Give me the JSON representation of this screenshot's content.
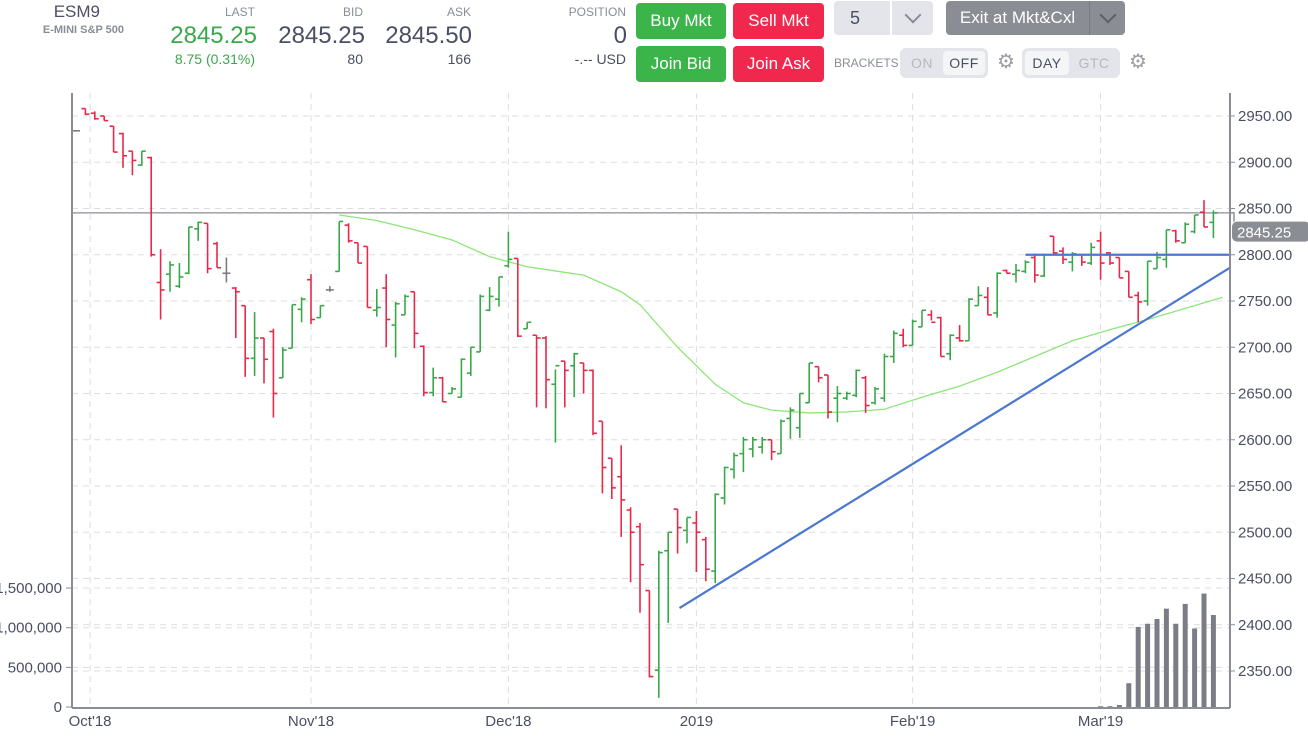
{
  "instrument": {
    "symbol": "ESM9",
    "name": "E-MINI S&P 500"
  },
  "quote": {
    "last_label": "LAST",
    "last": "2845.25",
    "change": "8.75 (0.31%)",
    "bid_label": "BID",
    "bid": "2845.25",
    "bid_size": "80",
    "ask_label": "ASK",
    "ask": "2845.50",
    "ask_size": "166",
    "position_label": "POSITION",
    "position": "0",
    "pnl": "-.-- USD"
  },
  "buttons": {
    "buy_mkt": "Buy Mkt",
    "sell_mkt": "Sell Mkt",
    "join_bid": "Join Bid",
    "join_ask": "Join Ask",
    "exit": "Exit at Mkt&Cxl"
  },
  "quantity": {
    "selected": "5"
  },
  "brackets": {
    "label": "BRACKETS",
    "on": "ON",
    "off": "OFF",
    "selected": "OFF"
  },
  "duration": {
    "day": "DAY",
    "gtc": "GTC",
    "selected": "DAY"
  },
  "icons": {
    "settings": "gear-icon",
    "dropdown": "chevron-down-icon"
  },
  "colors": {
    "up": "#3aa84a",
    "down": "#e8294a",
    "unchanged": "#7a7d85",
    "moving_average": "#8ee67a",
    "trendline": "#4a78d0",
    "last_price_tag": "#8a8d94",
    "buy": "#3bb54a",
    "sell": "#f0284e"
  },
  "chart_data": {
    "type": "ohlc",
    "price_axis": {
      "ticks": [
        "2950.00",
        "2900.00",
        "2850.00",
        "2800.00",
        "2750.00",
        "2700.00",
        "2650.00",
        "2600.00",
        "2550.00",
        "2500.00",
        "2450.00",
        "2400.00",
        "2350.00"
      ],
      "range": [
        2310,
        2965
      ]
    },
    "last_price_label": "2845.25",
    "last_price": 2845.25,
    "volume_axis": {
      "ticks": [
        "1,500,000",
        "1,000,000",
        "500,000",
        "0"
      ],
      "range": [
        0,
        1500000
      ]
    },
    "x_labels": [
      {
        "label": "Oct'18",
        "bar_index": 1.5
      },
      {
        "label": "Nov'18",
        "bar_index": 25
      },
      {
        "label": "Dec'18",
        "bar_index": 46
      },
      {
        "label": "2019",
        "bar_index": 66
      },
      {
        "label": "Feb'19",
        "bar_index": 89
      },
      {
        "label": "Mar'19",
        "bar_index": 109
      }
    ],
    "bars_ohlc": [
      [
        2934,
        2934,
        2934,
        2934
      ],
      [
        2958,
        2958,
        2951,
        2952
      ],
      [
        2953,
        2955,
        2946,
        2947
      ],
      [
        2950,
        2950,
        2945,
        2945
      ],
      [
        2939,
        2939,
        2911,
        2911
      ],
      [
        2931,
        2932,
        2894,
        2907
      ],
      [
        2912,
        2912,
        2886,
        2902
      ],
      [
        2897,
        2912,
        2896,
        2912
      ],
      [
        2905,
        2906,
        2798,
        2800
      ],
      [
        2770,
        2806,
        2730,
        2762
      ],
      [
        2779,
        2793,
        2760,
        2789
      ],
      [
        2766,
        2791,
        2764,
        2776
      ],
      [
        2780,
        2830,
        2779,
        2830
      ],
      [
        2828,
        2836,
        2815,
        2835
      ],
      [
        2834,
        2834,
        2780,
        2785
      ],
      [
        2812,
        2814,
        2786,
        2786
      ],
      [
        2780,
        2797,
        2770,
        2780
      ],
      [
        2764,
        2765,
        2710,
        2760
      ],
      [
        2745,
        2745,
        2668,
        2688
      ],
      [
        2688,
        2738,
        2669,
        2710
      ],
      [
        2710,
        2710,
        2661,
        2687
      ],
      [
        2717,
        2720,
        2624,
        2650
      ],
      [
        2667,
        2700,
        2667,
        2697
      ],
      [
        2699,
        2746,
        2699,
        2746
      ],
      [
        2741,
        2754,
        2727,
        2752
      ],
      [
        2773,
        2779,
        2725,
        2730
      ],
      [
        2732,
        2745,
        2732,
        2745
      ],
      [
        2762,
        2766,
        2760,
        2762
      ],
      [
        2782,
        2836,
        2782,
        2836
      ],
      [
        2832,
        2834,
        2813,
        2815
      ],
      [
        2813,
        2813,
        2791,
        2791
      ],
      [
        2809,
        2809,
        2743,
        2743
      ],
      [
        2740,
        2763,
        2733,
        2743
      ],
      [
        2764,
        2779,
        2700,
        2730
      ],
      [
        2724,
        2749,
        2689,
        2747
      ],
      [
        2735,
        2757,
        2735,
        2755
      ],
      [
        2760,
        2760,
        2699,
        2715
      ],
      [
        2701,
        2702,
        2647,
        2651
      ],
      [
        2651,
        2678,
        2647,
        2667
      ],
      [
        2667,
        2668,
        2641,
        2641
      ],
      [
        2650,
        2657,
        2650,
        2655
      ],
      [
        2646,
        2688,
        2646,
        2687
      ],
      [
        2672,
        2700,
        2669,
        2700
      ],
      [
        2695,
        2757,
        2695,
        2755
      ],
      [
        2740,
        2765,
        2739,
        2755
      ],
      [
        2752,
        2776,
        2744,
        2776
      ],
      [
        2788,
        2825,
        2786,
        2795
      ],
      [
        2796,
        2796,
        2711,
        2712
      ],
      [
        2720,
        2727,
        2720,
        2727
      ],
      [
        2713,
        2713,
        2635,
        2710
      ],
      [
        2710,
        2712,
        2634,
        2665
      ],
      [
        2660,
        2676,
        2597,
        2680
      ],
      [
        2685,
        2685,
        2635,
        2675
      ],
      [
        2680,
        2694,
        2646,
        2693
      ],
      [
        2683,
        2683,
        2650,
        2675
      ],
      [
        2675,
        2676,
        2605,
        2607
      ],
      [
        2620,
        2620,
        2542,
        2570
      ],
      [
        2580,
        2580,
        2536,
        2548
      ],
      [
        2560,
        2594,
        2495,
        2535
      ],
      [
        2524,
        2527,
        2446,
        2500
      ],
      [
        2506,
        2510,
        2413,
        2465
      ],
      [
        2437,
        2437,
        2343,
        2344
      ],
      [
        2351,
        2480,
        2321,
        2478
      ],
      [
        2480,
        2500,
        2402,
        2500
      ],
      [
        2525,
        2525,
        2477,
        2505
      ],
      [
        2502,
        2516,
        2488,
        2516
      ],
      [
        2510,
        2523,
        2457,
        2500
      ],
      [
        2492,
        2495,
        2447,
        2460
      ],
      [
        2458,
        2542,
        2445,
        2541
      ],
      [
        2537,
        2571,
        2530,
        2570
      ],
      [
        2568,
        2586,
        2558,
        2583
      ],
      [
        2585,
        2603,
        2565,
        2600
      ],
      [
        2590,
        2603,
        2581,
        2600
      ],
      [
        2592,
        2603,
        2585,
        2600
      ],
      [
        2600,
        2600,
        2578,
        2587
      ],
      [
        2585,
        2622,
        2585,
        2620
      ],
      [
        2623,
        2635,
        2601,
        2632
      ],
      [
        2613,
        2650,
        2602,
        2650
      ],
      [
        2640,
        2683,
        2640,
        2683
      ],
      [
        2679,
        2679,
        2662,
        2667
      ],
      [
        2670,
        2670,
        2623,
        2630
      ],
      [
        2645,
        2658,
        2619,
        2650
      ],
      [
        2645,
        2652,
        2643,
        2650
      ],
      [
        2648,
        2676,
        2646,
        2675
      ],
      [
        2667,
        2669,
        2629,
        2637
      ],
      [
        2640,
        2657,
        2638,
        2655
      ],
      [
        2645,
        2693,
        2641,
        2690
      ],
      [
        2690,
        2718,
        2683,
        2715
      ],
      [
        2713,
        2720,
        2700,
        2702
      ],
      [
        2702,
        2730,
        2702,
        2728
      ],
      [
        2722,
        2740,
        2722,
        2740
      ],
      [
        2735,
        2740,
        2729,
        2727
      ],
      [
        2732,
        2733,
        2690,
        2690
      ],
      [
        2693,
        2714,
        2686,
        2713
      ],
      [
        2710,
        2724,
        2706,
        2707
      ],
      [
        2707,
        2753,
        2707,
        2752
      ],
      [
        2745,
        2766,
        2745,
        2756
      ],
      [
        2754,
        2765,
        2735,
        2735
      ],
      [
        2737,
        2781,
        2732,
        2780
      ],
      [
        2783,
        2784,
        2780,
        2780
      ],
      [
        2779,
        2790,
        2770,
        2783
      ],
      [
        2782,
        2794,
        2780,
        2792
      ],
      [
        2797,
        2801,
        2770,
        2778
      ],
      [
        2777,
        2800,
        2776,
        2800
      ],
      [
        2820,
        2820,
        2800,
        2802
      ],
      [
        2804,
        2808,
        2790,
        2795
      ],
      [
        2792,
        2803,
        2782,
        2801
      ],
      [
        2800,
        2800,
        2788,
        2792
      ],
      [
        2791,
        2813,
        2789,
        2808
      ],
      [
        2815,
        2825,
        2773,
        2791
      ],
      [
        2802,
        2803,
        2789,
        2791
      ],
      [
        2797,
        2797,
        2775,
        2775
      ],
      [
        2782,
        2782,
        2754,
        2754
      ],
      [
        2756,
        2760,
        2727,
        2749
      ],
      [
        2750,
        2793,
        2745,
        2793
      ],
      [
        2785,
        2803,
        2785,
        2797
      ],
      [
        2795,
        2827,
        2786,
        2827
      ],
      [
        2826,
        2827,
        2813,
        2815
      ],
      [
        2813,
        2835,
        2813,
        2833
      ],
      [
        2825,
        2843,
        2823,
        2843
      ],
      [
        2846,
        2859,
        2830,
        2830
      ],
      [
        2835,
        2848,
        2818,
        2845.25
      ]
    ],
    "volume": [
      {
        "bar_index": 109,
        "value": 10000
      },
      {
        "bar_index": 110,
        "value": 10000
      },
      {
        "bar_index": 111,
        "value": 25000
      },
      {
        "bar_index": 112,
        "value": 300000
      },
      {
        "bar_index": 113,
        "value": 1010000
      },
      {
        "bar_index": 114,
        "value": 1050000
      },
      {
        "bar_index": 115,
        "value": 1110000
      },
      {
        "bar_index": 116,
        "value": 1240000
      },
      {
        "bar_index": 117,
        "value": 1050000
      },
      {
        "bar_index": 118,
        "value": 1300000
      },
      {
        "bar_index": 119,
        "value": 990000
      },
      {
        "bar_index": 120,
        "value": 1430000
      },
      {
        "bar_index": 121,
        "value": 1160000
      }
    ],
    "moving_average": [
      [
        28,
        2843
      ],
      [
        32,
        2837
      ],
      [
        36,
        2827
      ],
      [
        40,
        2816
      ],
      [
        44,
        2798
      ],
      [
        48,
        2787
      ],
      [
        50,
        2784
      ],
      [
        54,
        2778
      ],
      [
        58,
        2760
      ],
      [
        60,
        2746
      ],
      [
        64,
        2700
      ],
      [
        68,
        2660
      ],
      [
        71,
        2640
      ],
      [
        74,
        2632
      ],
      [
        78,
        2629
      ],
      [
        82,
        2630
      ],
      [
        86,
        2633
      ],
      [
        90,
        2646
      ],
      [
        94,
        2658
      ],
      [
        98,
        2673
      ],
      [
        102,
        2690
      ],
      [
        106,
        2707
      ],
      [
        110,
        2719
      ],
      [
        114,
        2730
      ],
      [
        118,
        2742
      ],
      [
        122,
        2754
      ]
    ],
    "trendlines": [
      {
        "from": [
          64.2,
          2418
        ],
        "to": [
          123.6,
          2786
        ]
      },
      {
        "from": [
          101,
          2800
        ],
        "to": [
          123.6,
          2800
        ]
      }
    ]
  }
}
